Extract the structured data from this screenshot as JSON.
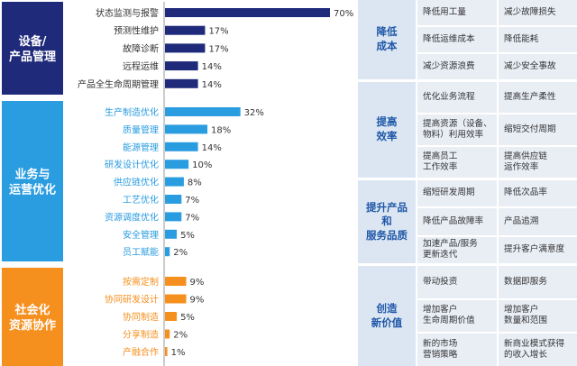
{
  "chart_data": {
    "type": "bar",
    "orientation": "horizontal",
    "value_suffix": "%",
    "xlim": [
      0,
      70
    ],
    "sections": [
      {
        "title": "设备/\n产品管理",
        "color": "#1f2a7a",
        "label_color": "#333333",
        "categories": [
          "状态监测与报警",
          "预测性维护",
          "故障诊断",
          "远程运维",
          "产品全生命周期管理"
        ],
        "values": [
          70,
          17,
          17,
          14,
          14
        ]
      },
      {
        "title": "业务与\n运营优化",
        "color": "#2a9ce0",
        "label_color": "#2a9ce0",
        "categories": [
          "生产制造优化",
          "质量管理",
          "能源管理",
          "研发设计优化",
          "供应链优化",
          "工艺优化",
          "资源调度优化",
          "安全管理",
          "员工赋能"
        ],
        "values": [
          32,
          18,
          14,
          10,
          8,
          7,
          7,
          5,
          2
        ]
      },
      {
        "title": "社会化\n资源协作",
        "color": "#f5901f",
        "label_color": "#f5901f",
        "categories": [
          "按需定制",
          "协同研发设计",
          "协同制造",
          "分享制造",
          "产融合作"
        ],
        "values": [
          9,
          9,
          5,
          2,
          1
        ]
      }
    ]
  },
  "benefits": [
    {
      "title": "降低\n成本",
      "cells": [
        [
          "降低用工量",
          "减少故障损失"
        ],
        [
          "降低运维成本",
          "降低能耗"
        ],
        [
          "减少资源浪费",
          "减少安全事故"
        ]
      ]
    },
    {
      "title": "提高\n效率",
      "cells": [
        [
          "优化业务流程",
          "提高生产柔性"
        ],
        [
          "提高资源（设备、\n物料）利用效率",
          "缩短交付周期"
        ],
        [
          "提高员工\n工作效率",
          "提高供应链\n运作效率"
        ]
      ]
    },
    {
      "title": "提升产品\n和\n服务品质",
      "cells": [
        [
          "缩短研发周期",
          "降低次品率"
        ],
        [
          "降低产品故障率",
          "产品追溯"
        ],
        [
          "加速产品/服务\n更新迭代",
          "提升客户满意度"
        ]
      ]
    },
    {
      "title": "创造\n新价值",
      "cells": [
        [
          "带动投资",
          "数据即服务"
        ],
        [
          "增加客户\n生命周期价值",
          "增加客户\n数量和范围"
        ],
        [
          "新的市场\n营销策略",
          "新商业模式获得\n的收入增长"
        ]
      ]
    }
  ]
}
